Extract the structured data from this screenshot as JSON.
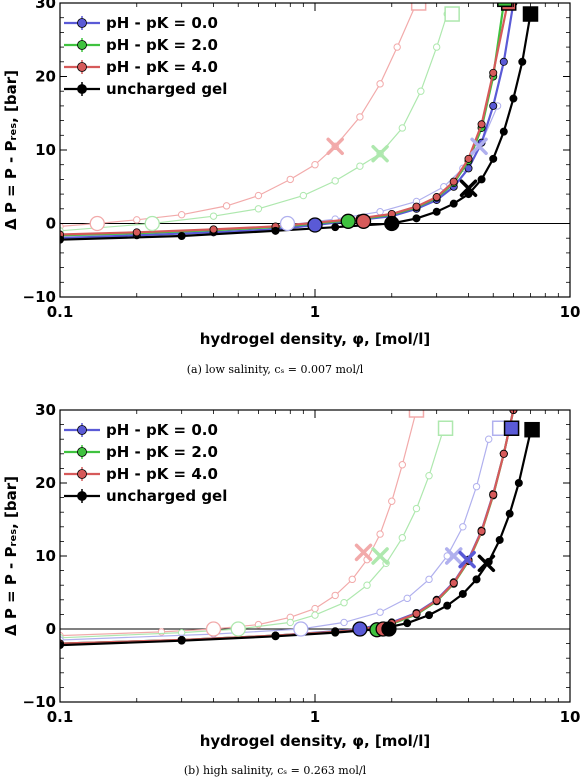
{
  "chart_data": [
    {
      "type": "line",
      "panel": "a",
      "caption": "(a) low salinity, cₛ = 0.007 mol/l",
      "xlabel": "hydrogel density, φ, [mol/l]",
      "ylabel": "Δ P = P - Pᵣₑₛ, [bar]",
      "xscale": "log",
      "xlim": [
        0.1,
        10
      ],
      "ylim": [
        -10,
        30
      ],
      "xticks": [
        "0.1",
        "1",
        "10"
      ],
      "yticks": [
        "−10",
        "0",
        "10",
        "20",
        "30"
      ],
      "legend_position": "top-left",
      "legend": [
        "pH - pK = 0.0",
        "pH - pK = 2.0",
        "pH - pK = 4.0",
        "uncharged gel"
      ],
      "series": [
        {
          "name": "pH - pK = 0.0",
          "color": "#5a5ad6",
          "style": "solid",
          "x": [
            0.1,
            0.2,
            0.4,
            0.7,
            1.0,
            1.5,
            2.0,
            2.5,
            3.0,
            3.5,
            4.0,
            4.5,
            5.0,
            5.5,
            6.0
          ],
          "y": [
            -2.0,
            -1.6,
            -1.2,
            -0.8,
            -0.2,
            0.5,
            1.0,
            2.0,
            3.2,
            5.0,
            7.5,
            11.0,
            16.0,
            22.0,
            30.0
          ]
        },
        {
          "name": "pH - pK = 2.0",
          "color": "#3fc23f",
          "style": "solid",
          "x": [
            0.1,
            0.2,
            0.4,
            0.7,
            1.0,
            1.5,
            2.0,
            2.5,
            3.0,
            3.5,
            4.0,
            4.5,
            5.0,
            5.5
          ],
          "y": [
            -1.6,
            -1.3,
            -0.9,
            -0.5,
            0.0,
            0.6,
            1.2,
            2.2,
            3.5,
            5.5,
            8.5,
            13.0,
            20.0,
            30.0
          ]
        },
        {
          "name": "pH - pK = 4.0",
          "color": "#d65a5a",
          "style": "solid",
          "x": [
            0.1,
            0.2,
            0.4,
            0.7,
            1.0,
            1.5,
            2.0,
            2.5,
            3.0,
            3.5,
            4.0,
            4.5,
            5.0,
            5.7
          ],
          "y": [
            -1.5,
            -1.2,
            -0.8,
            -0.4,
            0.1,
            0.7,
            1.3,
            2.3,
            3.6,
            5.7,
            8.8,
            13.5,
            20.5,
            30.0
          ]
        },
        {
          "name": "uncharged gel",
          "color": "#000000",
          "style": "solid",
          "x": [
            0.1,
            0.3,
            0.7,
            1.2,
            2.0,
            2.5,
            3.0,
            3.5,
            4.0,
            4.5,
            5.0,
            5.5,
            6.0,
            6.5,
            7.0
          ],
          "y": [
            -2.2,
            -1.7,
            -1.0,
            -0.5,
            0.0,
            0.7,
            1.6,
            2.7,
            4.0,
            6.0,
            8.8,
            12.5,
            17.0,
            22.0,
            28.5
          ]
        },
        {
          "name": "",
          "color": "#f2aaaa",
          "style": "faded",
          "x": [
            0.1,
            0.14,
            0.2,
            0.3,
            0.45,
            0.6,
            0.8,
            1.0,
            1.2,
            1.5,
            1.8,
            2.1,
            2.5
          ],
          "y": [
            -0.4,
            0.0,
            0.5,
            1.2,
            2.4,
            3.8,
            6.0,
            8.0,
            10.5,
            14.5,
            19.0,
            24.0,
            30.0
          ]
        },
        {
          "name": "",
          "color": "#aee8ae",
          "style": "faded",
          "x": [
            0.1,
            0.23,
            0.4,
            0.6,
            0.9,
            1.2,
            1.5,
            1.8,
            2.2,
            2.6,
            3.0,
            3.3
          ],
          "y": [
            -1.0,
            0.0,
            1.0,
            2.0,
            3.8,
            5.8,
            7.8,
            9.5,
            13.0,
            18.0,
            24.0,
            28.5
          ]
        },
        {
          "name": "",
          "color": "#b0b0ee",
          "style": "faded",
          "x": [
            0.1,
            0.4,
            0.78,
            1.2,
            1.8,
            2.5,
            3.2,
            3.8,
            4.5,
            5.2
          ],
          "y": [
            -1.8,
            -1.0,
            -0.2,
            0.6,
            1.6,
            3.0,
            5.0,
            7.5,
            11.0,
            16.0
          ]
        }
      ],
      "markers": [
        {
          "shape": "square-open",
          "x": 2.55,
          "y": 30.0,
          "color": "#f2aaaa"
        },
        {
          "shape": "square-open",
          "x": 3.45,
          "y": 28.5,
          "color": "#aee8ae"
        },
        {
          "shape": "square-filled",
          "x": 5.75,
          "y": 30.0,
          "color": "#d65a5a"
        },
        {
          "shape": "square-filled",
          "x": 5.55,
          "y": 30.5,
          "color": "#3fc23f"
        },
        {
          "shape": "square-filled",
          "x": 7.0,
          "y": 28.5,
          "color": "#000000"
        },
        {
          "shape": "x",
          "x": 1.2,
          "y": 10.5,
          "color": "#f2aaaa"
        },
        {
          "shape": "x",
          "x": 1.8,
          "y": 9.5,
          "color": "#aee8ae"
        },
        {
          "shape": "x",
          "x": 4.4,
          "y": 10.5,
          "color": "#b0b0ee"
        },
        {
          "shape": "x",
          "x": 4.0,
          "y": 4.8,
          "color": "#000000"
        },
        {
          "shape": "circle-open",
          "x": 0.14,
          "y": 0.0,
          "color": "#f2aaaa"
        },
        {
          "shape": "circle-open",
          "x": 0.23,
          "y": 0.0,
          "color": "#aee8ae"
        },
        {
          "shape": "circle-open",
          "x": 0.78,
          "y": 0.0,
          "color": "#b0b0ee"
        },
        {
          "shape": "circle-filled",
          "x": 1.0,
          "y": -0.2,
          "color": "#5a5ad6"
        },
        {
          "shape": "circle-filled",
          "x": 1.35,
          "y": 0.3,
          "color": "#3fc23f"
        },
        {
          "shape": "circle-filled",
          "x": 1.55,
          "y": 0.3,
          "color": "#d65a5a"
        },
        {
          "shape": "circle-filled",
          "x": 2.0,
          "y": 0.0,
          "color": "#000000"
        }
      ]
    },
    {
      "type": "line",
      "panel": "b",
      "caption": "(b) high salinity, cₛ = 0.263 mol/l",
      "xlabel": "hydrogel density, φ, [mol/l]",
      "ylabel": "Δ P = P - Pᵣₑₛ, [bar]",
      "xscale": "log",
      "xlim": [
        0.1,
        10
      ],
      "ylim": [
        -10,
        30
      ],
      "xticks": [
        "0.1",
        "1",
        "10"
      ],
      "yticks": [
        "−10",
        "0",
        "10",
        "20",
        "30"
      ],
      "legend_position": "top-left",
      "legend": [
        "pH - pK = 0.0",
        "pH - pK = 2.0",
        "pH - pK = 4.0",
        "uncharged gel"
      ],
      "series": [
        {
          "name": "pH - pK = 0.0",
          "color": "#5a5ad6",
          "style": "solid",
          "x": [
            0.1,
            0.3,
            0.7,
            1.2,
            1.5,
            2.0,
            2.5,
            3.0,
            3.5,
            4.0,
            4.5,
            5.0,
            5.5,
            6.0
          ],
          "y": [
            -2.0,
            -1.5,
            -0.9,
            -0.3,
            0.0,
            0.9,
            2.2,
            4.0,
            6.4,
            9.5,
            13.5,
            18.5,
            24.0,
            30.0
          ]
        },
        {
          "name": "pH - pK = 2.0",
          "color": "#3fc23f",
          "style": "solid",
          "x": [
            0.1,
            0.3,
            0.7,
            1.2,
            1.5,
            2.0,
            2.5,
            3.0,
            3.5,
            4.0,
            4.5,
            5.0,
            5.5,
            6.0
          ],
          "y": [
            -2.0,
            -1.5,
            -0.9,
            -0.4,
            -0.1,
            0.7,
            2.0,
            3.8,
            6.2,
            9.3,
            13.3,
            18.3,
            24.0,
            30.0
          ]
        },
        {
          "name": "pH - pK = 4.0",
          "color": "#d65a5a",
          "style": "solid",
          "x": [
            0.1,
            0.3,
            0.7,
            1.2,
            1.5,
            2.0,
            2.5,
            3.0,
            3.5,
            4.0,
            4.5,
            5.0,
            5.5,
            6.0
          ],
          "y": [
            -2.0,
            -1.5,
            -0.9,
            -0.4,
            -0.1,
            0.8,
            2.1,
            3.9,
            6.3,
            9.4,
            13.4,
            18.4,
            24.0,
            30.0
          ]
        },
        {
          "name": "uncharged gel",
          "color": "#000000",
          "style": "solid",
          "x": [
            0.1,
            0.3,
            0.7,
            1.2,
            1.8,
            2.3,
            2.8,
            3.3,
            3.8,
            4.3,
            4.8,
            5.3,
            5.8,
            6.3,
            7.0
          ],
          "y": [
            -2.2,
            -1.6,
            -1.0,
            -0.5,
            0.0,
            0.8,
            1.9,
            3.2,
            4.8,
            6.8,
            9.2,
            12.2,
            15.8,
            20.0,
            27.0
          ]
        },
        {
          "name": "",
          "color": "#f2aaaa",
          "style": "faded",
          "x": [
            0.1,
            0.25,
            0.4,
            0.6,
            0.8,
            1.0,
            1.2,
            1.4,
            1.6,
            1.8,
            2.0,
            2.2,
            2.5
          ],
          "y": [
            -0.9,
            -0.4,
            0.0,
            0.6,
            1.6,
            2.8,
            4.6,
            6.8,
            9.5,
            13.0,
            17.5,
            22.5,
            30.0
          ]
        },
        {
          "name": "",
          "color": "#aee8ae",
          "style": "faded",
          "x": [
            0.1,
            0.3,
            0.5,
            0.8,
            1.0,
            1.3,
            1.6,
            1.9,
            2.2,
            2.5,
            2.8,
            3.2
          ],
          "y": [
            -1.2,
            -0.5,
            0.0,
            0.9,
            1.9,
            3.6,
            6.0,
            9.0,
            12.5,
            16.5,
            21.0,
            27.5
          ]
        },
        {
          "name": "",
          "color": "#b0b0ee",
          "style": "faded",
          "x": [
            0.1,
            0.4,
            0.88,
            1.3,
            1.8,
            2.3,
            2.8,
            3.3,
            3.8,
            4.3,
            4.8
          ],
          "y": [
            -1.5,
            -0.7,
            0.0,
            0.9,
            2.3,
            4.2,
            6.8,
            10.0,
            14.0,
            19.5,
            26.0
          ]
        }
      ],
      "markers": [
        {
          "shape": "square-open",
          "x": 2.5,
          "y": 30.0,
          "color": "#f2aaaa"
        },
        {
          "shape": "square-open",
          "x": 3.25,
          "y": 27.5,
          "color": "#aee8ae"
        },
        {
          "shape": "square-open",
          "x": 5.3,
          "y": 27.5,
          "color": "#b0b0ee"
        },
        {
          "shape": "square-filled",
          "x": 5.9,
          "y": 27.5,
          "color": "#5a5ad6"
        },
        {
          "shape": "square-filled",
          "x": 7.1,
          "y": 27.3,
          "color": "#000000"
        },
        {
          "shape": "x",
          "x": 1.55,
          "y": 10.5,
          "color": "#f2aaaa"
        },
        {
          "shape": "x",
          "x": 1.8,
          "y": 10.0,
          "color": "#aee8ae"
        },
        {
          "shape": "x",
          "x": 3.5,
          "y": 10.0,
          "color": "#b0b0ee"
        },
        {
          "shape": "x",
          "x": 3.95,
          "y": 9.5,
          "color": "#5a5ad6"
        },
        {
          "shape": "x",
          "x": 4.7,
          "y": 9.0,
          "color": "#000000"
        },
        {
          "shape": "circle-open",
          "x": 0.4,
          "y": 0.0,
          "color": "#f2aaaa"
        },
        {
          "shape": "circle-open",
          "x": 0.5,
          "y": 0.0,
          "color": "#aee8ae"
        },
        {
          "shape": "circle-open",
          "x": 0.88,
          "y": 0.0,
          "color": "#b0b0ee"
        },
        {
          "shape": "circle-filled",
          "x": 1.5,
          "y": 0.0,
          "color": "#5a5ad6"
        },
        {
          "shape": "circle-filled",
          "x": 1.75,
          "y": -0.1,
          "color": "#3fc23f"
        },
        {
          "shape": "circle-filled",
          "x": 1.85,
          "y": 0.0,
          "color": "#d65a5a"
        },
        {
          "shape": "circle-filled",
          "x": 1.95,
          "y": 0.0,
          "color": "#000000"
        }
      ]
    }
  ]
}
